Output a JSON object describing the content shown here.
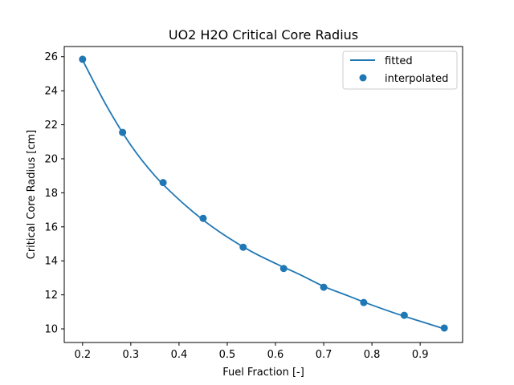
{
  "chart_data": {
    "type": "line",
    "title": "UO2 H2O Critical Core Radius",
    "xlabel": "Fuel Fraction [-]",
    "ylabel": "Critical Core Radius [cm]",
    "xlim": [
      0.162,
      0.988
    ],
    "ylim": [
      9.2,
      26.6
    ],
    "xticks": [
      0.2,
      0.3,
      0.4,
      0.5,
      0.6,
      0.7,
      0.8,
      0.9
    ],
    "xtick_labels": [
      "0.2",
      "0.3",
      "0.4",
      "0.5",
      "0.6",
      "0.7",
      "0.8",
      "0.9"
    ],
    "yticks": [
      10,
      12,
      14,
      16,
      18,
      20,
      22,
      24,
      26
    ],
    "ytick_labels": [
      "10",
      "12",
      "14",
      "16",
      "18",
      "20",
      "22",
      "24",
      "26"
    ],
    "grid": false,
    "legend_position": "top-right",
    "colors": {
      "series": "#1f77b4"
    },
    "series": [
      {
        "name": "fitted",
        "kind": "line",
        "x": [
          0.2,
          0.25,
          0.3,
          0.35,
          0.4,
          0.45,
          0.5,
          0.55,
          0.6,
          0.65,
          0.7,
          0.75,
          0.8,
          0.85,
          0.9,
          0.95
        ],
        "y": [
          25.8,
          23.1,
          20.8,
          19.0,
          17.6,
          16.4,
          15.4,
          14.55,
          13.85,
          13.2,
          12.5,
          11.95,
          11.4,
          10.9,
          10.45,
          10.0
        ]
      },
      {
        "name": "interpolated",
        "kind": "scatter",
        "x": [
          0.2,
          0.283,
          0.367,
          0.45,
          0.533,
          0.617,
          0.7,
          0.783,
          0.867,
          0.95
        ],
        "y": [
          25.85,
          21.55,
          18.6,
          16.5,
          14.8,
          13.55,
          12.45,
          11.55,
          10.8,
          10.05
        ]
      }
    ]
  }
}
